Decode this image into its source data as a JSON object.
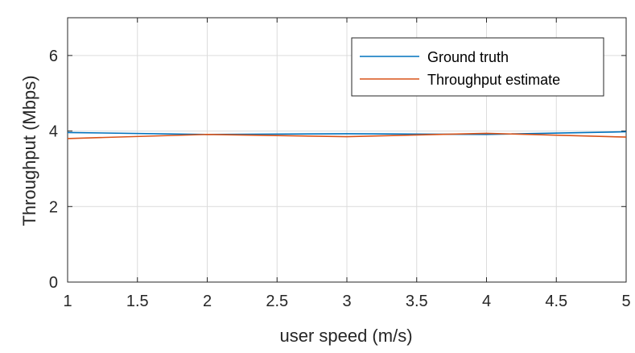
{
  "chart_data": {
    "type": "line",
    "title": "",
    "xlabel": "user speed (m/s)",
    "ylabel": "Throughput (Mbps)",
    "xlim": [
      1,
      5
    ],
    "ylim": [
      0,
      7
    ],
    "xticks": [
      1,
      1.5,
      2,
      2.5,
      3,
      3.5,
      4,
      4.5,
      5
    ],
    "xtick_labels": [
      "1",
      "1.5",
      "2",
      "2.5",
      "3",
      "3.5",
      "4",
      "4.5",
      "5"
    ],
    "yticks": [
      0,
      2,
      4,
      6
    ],
    "ytick_labels": [
      "0",
      "2",
      "4",
      "6"
    ],
    "grid": true,
    "legend": "top-right",
    "x": [
      1,
      2,
      3,
      4,
      5
    ],
    "series": [
      {
        "name": "Ground truth",
        "color": "#0072bd",
        "values": [
          3.96,
          3.91,
          3.93,
          3.91,
          3.98
        ]
      },
      {
        "name": "Throughput estimate",
        "color": "#d95319",
        "values": [
          3.8,
          3.91,
          3.85,
          3.94,
          3.84
        ]
      }
    ]
  }
}
